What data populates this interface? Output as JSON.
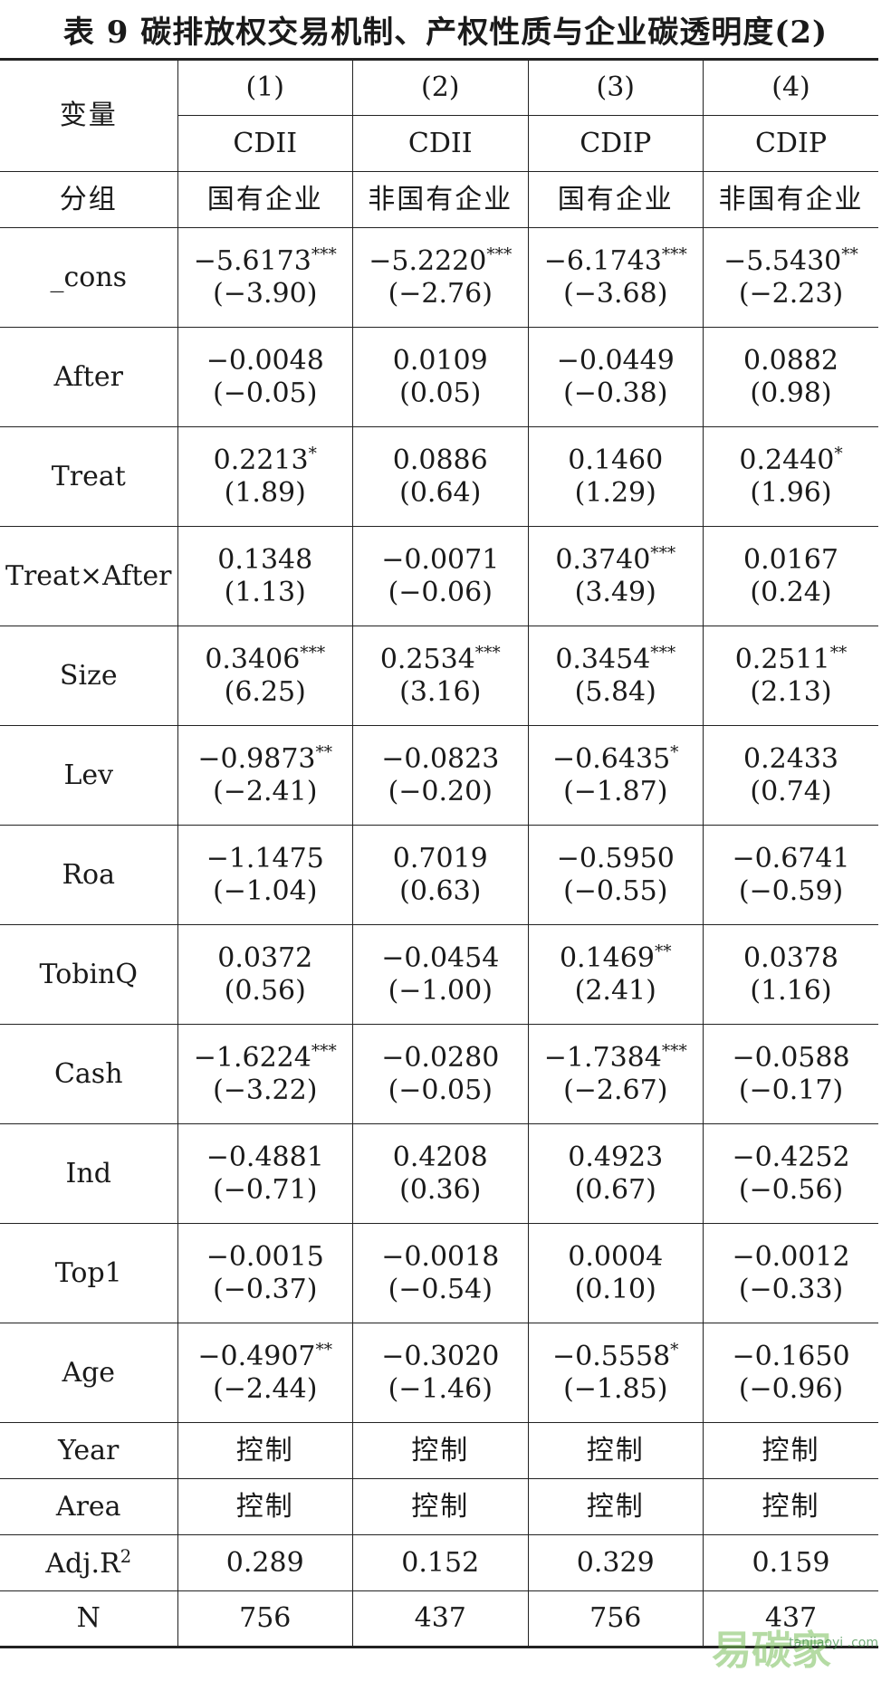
{
  "title": "表 9   碳排放权交易机制、产权性质与企业碳透明度(2)",
  "header": {
    "var_label": "变量",
    "group_label": "分组",
    "col_numbers": [
      "(1)",
      "(2)",
      "(3)",
      "(4)"
    ],
    "dep_vars": [
      "CDII",
      "CDII",
      "CDIP",
      "CDIP"
    ],
    "groups": [
      "国有企业",
      "非国有企业",
      "国有企业",
      "非国有企业"
    ]
  },
  "rows": [
    {
      "name": "_cons",
      "coef": [
        "−5.6173",
        "−5.2220",
        "−6.1743",
        "−5.5430"
      ],
      "stars": [
        "***",
        "***",
        "***",
        "**"
      ],
      "t": [
        "(−3.90)",
        "(−2.76)",
        "(−3.68)",
        "(−2.23)"
      ]
    },
    {
      "name": "After",
      "coef": [
        "−0.0048",
        "0.0109",
        "−0.0449",
        "0.0882"
      ],
      "stars": [
        "",
        "",
        "",
        ""
      ],
      "t": [
        "(−0.05)",
        "(0.05)",
        "(−0.38)",
        "(0.98)"
      ]
    },
    {
      "name": "Treat",
      "coef": [
        "0.2213",
        "0.0886",
        "0.1460",
        "0.2440"
      ],
      "stars": [
        "*",
        "",
        "",
        "*"
      ],
      "t": [
        "(1.89)",
        "(0.64)",
        "(1.29)",
        "(1.96)"
      ]
    },
    {
      "name": "Treat×After",
      "coef": [
        "0.1348",
        "−0.0071",
        "0.3740",
        "0.0167"
      ],
      "stars": [
        "",
        "",
        "***",
        ""
      ],
      "t": [
        "(1.13)",
        "(−0.06)",
        "(3.49)",
        "(0.24)"
      ]
    },
    {
      "name": "Size",
      "coef": [
        "0.3406",
        "0.2534",
        "0.3454",
        "0.2511"
      ],
      "stars": [
        "***",
        "***",
        "***",
        "**"
      ],
      "t": [
        "(6.25)",
        "(3.16)",
        "(5.84)",
        "(2.13)"
      ]
    },
    {
      "name": "Lev",
      "coef": [
        "−0.9873",
        "−0.0823",
        "−0.6435",
        "0.2433"
      ],
      "stars": [
        "**",
        "",
        "*",
        ""
      ],
      "t": [
        "(−2.41)",
        "(−0.20)",
        "(−1.87)",
        "(0.74)"
      ]
    },
    {
      "name": "Roa",
      "coef": [
        "−1.1475",
        "0.7019",
        "−0.5950",
        "−0.6741"
      ],
      "stars": [
        "",
        "",
        "",
        ""
      ],
      "t": [
        "(−1.04)",
        "(0.63)",
        "(−0.55)",
        "(−0.59)"
      ]
    },
    {
      "name": "TobinQ",
      "coef": [
        "0.0372",
        "−0.0454",
        "0.1469",
        "0.0378"
      ],
      "stars": [
        "",
        "",
        "**",
        ""
      ],
      "t": [
        "(0.56)",
        "(−1.00)",
        "(2.41)",
        "(1.16)"
      ]
    },
    {
      "name": "Cash",
      "coef": [
        "−1.6224",
        "−0.0280",
        "−1.7384",
        "−0.0588"
      ],
      "stars": [
        "***",
        "",
        "***",
        ""
      ],
      "t": [
        "(−3.22)",
        "(−0.05)",
        "(−2.67)",
        "(−0.17)"
      ]
    },
    {
      "name": "Ind",
      "coef": [
        "−0.4881",
        "0.4208",
        "0.4923",
        "−0.4252"
      ],
      "stars": [
        "",
        "",
        "",
        ""
      ],
      "t": [
        "(−0.71)",
        "(0.36)",
        "(0.67)",
        "(−0.56)"
      ]
    },
    {
      "name": "Top1",
      "coef": [
        "−0.0015",
        "−0.0018",
        "0.0004",
        "−0.0012"
      ],
      "stars": [
        "",
        "",
        "",
        ""
      ],
      "t": [
        "(−0.37)",
        "(−0.54)",
        "(0.10)",
        "(−0.33)"
      ]
    },
    {
      "name": "Age",
      "coef": [
        "−0.4907",
        "−0.3020",
        "−0.5558",
        "−0.1650"
      ],
      "stars": [
        "**",
        "",
        "*",
        ""
      ],
      "t": [
        "(−2.44)",
        "(−1.46)",
        "(−1.85)",
        "(−0.96)"
      ]
    }
  ],
  "controls": [
    {
      "name": "Year",
      "values": [
        "控制",
        "控制",
        "控制",
        "控制"
      ]
    },
    {
      "name": "Area",
      "values": [
        "控制",
        "控制",
        "控制",
        "控制"
      ]
    }
  ],
  "adj_r2": {
    "label": "Adj.R",
    "sup": "2",
    "values": [
      "0.289",
      "0.152",
      "0.329",
      "0.159"
    ]
  },
  "n": {
    "label": "N",
    "values": [
      "756",
      "437",
      "756",
      "437"
    ]
  },
  "watermark": {
    "main": "易碳家",
    "sub": "tanjiaoyi .com"
  }
}
